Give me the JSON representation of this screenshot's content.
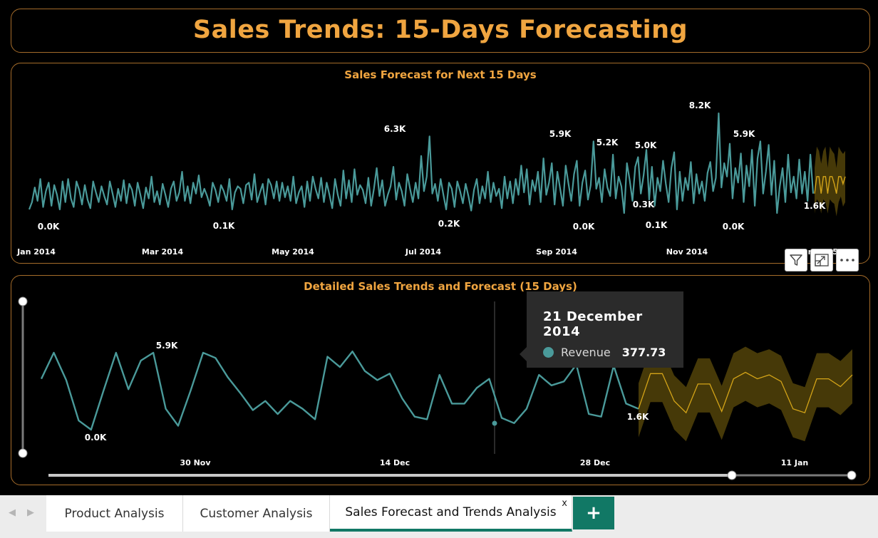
{
  "header": {
    "title": "Sales Trends: 15-Days Forecasting"
  },
  "colors": {
    "accent": "#f0a540",
    "actual": "#4a9a9a",
    "forecast": "#d4a418",
    "band": "#4a3c08"
  },
  "visual_header": {
    "filter_icon": "filter-icon",
    "focus_icon": "focus-mode-icon",
    "more_icon": "more-options-icon"
  },
  "tooltip": {
    "date": "21 December 2014",
    "label": "Revenue",
    "value": "377.73"
  },
  "tabs": [
    {
      "label": "Product Analysis"
    },
    {
      "label": "Customer Analysis"
    },
    {
      "label": "Sales Forecast and Trends Analysis",
      "active": true,
      "close": "x"
    }
  ],
  "add_tab": "+",
  "chart_data": [
    {
      "type": "line",
      "title": "Sales Forecast for Next 15 Days",
      "x_ticks": [
        "Jan 2014",
        "Mar 2014",
        "May 2014",
        "Jul 2014",
        "Sep 2014",
        "Nov 2014",
        "Jan 2015"
      ],
      "data_labels": [
        "0.0K",
        "0.1K",
        "6.3K",
        "0.2K",
        "5.9K",
        "0.0K",
        "5.2K",
        "5.0K",
        "0.3K",
        "0.1K",
        "8.2K",
        "0.0K",
        "5.9K",
        "1.6K"
      ],
      "ylim": [
        0,
        8200
      ],
      "series": [
        {
          "kind": "actual",
          "values": [
            300,
            900,
            2100,
            1000,
            2800,
            500,
            1800,
            2500,
            600,
            2300,
            1500,
            300,
            2600,
            900,
            2800,
            1200,
            500,
            2600,
            1900,
            700,
            2300,
            1100,
            400,
            2600,
            1700,
            900,
            2200,
            1400,
            700,
            2600,
            1600,
            500,
            2000,
            1000,
            2700,
            800,
            2400,
            1900,
            600,
            2500,
            1500,
            400,
            2100,
            1200,
            3000,
            900,
            1800,
            700,
            2400,
            1500,
            500,
            2000,
            2600,
            1000,
            1700,
            3400,
            1000,
            2200,
            800,
            2500,
            1600,
            3100,
            1300,
            2000,
            1400,
            600,
            2500,
            1900,
            900,
            2300,
            1800,
            1000,
            2800,
            300,
            1700,
            2200,
            2000,
            800,
            2300,
            2500,
            1100,
            3200,
            900,
            1700,
            2400,
            700,
            2800,
            2300,
            1200,
            2600,
            1000,
            2500,
            1300,
            2200,
            1000,
            3000,
            800,
            1700,
            2200,
            500,
            2600,
            1000,
            3000,
            2000,
            1200,
            2900,
            900,
            2500,
            1500,
            400,
            2800,
            1500,
            600,
            3500,
            1200,
            2700,
            900,
            3600,
            1500,
            2300,
            1900,
            800,
            2900,
            600,
            2000,
            3700,
            1400,
            2700,
            600,
            1500,
            2200,
            3800,
            1100,
            2500,
            1800,
            600,
            3200,
            2000,
            900,
            2500,
            1200,
            4700,
            1800,
            3000,
            6300,
            1600,
            2400,
            1000,
            2800,
            1500,
            300,
            2500,
            2000,
            500,
            2600,
            1800,
            800,
            2400,
            1400,
            200,
            1900,
            2800,
            800,
            2200,
            1200,
            3400,
            900,
            2500,
            1400,
            2000,
            400,
            3000,
            1200,
            2600,
            800,
            2800,
            1500,
            3900,
            1700,
            3600,
            700,
            2700,
            1800,
            3400,
            900,
            4500,
            1500,
            2500,
            4100,
            700,
            3400,
            2000,
            600,
            3900,
            2400,
            1000,
            3200,
            4300,
            600,
            2500,
            3500,
            1100,
            2300,
            5900,
            2000,
            2900,
            900,
            3600,
            2100,
            1400,
            4800,
            1200,
            3000,
            2200,
            0,
            4100,
            2700,
            1000,
            3800,
            4600,
            1600,
            3100,
            5200,
            1100,
            3800,
            600,
            2900,
            1800,
            4300,
            2400,
            900,
            3700,
            5000,
            300,
            3400,
            1000,
            2900,
            1900,
            4200,
            800,
            3200,
            1600,
            2600,
            1000,
            3300,
            4200,
            1800,
            2900,
            8200,
            2100,
            4100,
            3000,
            5700,
            1200,
            3700,
            2500,
            4900,
            900,
            3900,
            2200,
            5200,
            600,
            4500,
            5900,
            1600,
            3400,
            5600,
            1500,
            4300,
            0,
            2200,
            3700,
            900,
            4800,
            1700,
            3000,
            1200,
            4400,
            1600,
            3400,
            1000,
            4800,
            1600
          ]
        },
        {
          "kind": "forecast",
          "values": [
            1600,
            3000,
            3000,
            1600,
            3000,
            3000,
            1600,
            3000,
            3000,
            2400,
            1600,
            3000,
            3000,
            2400,
            3000
          ]
        }
      ]
    },
    {
      "type": "line",
      "title": "Detailed Sales Trends and Forecast (15 Days)",
      "x_ticks": [
        "30 Nov",
        "14 Dec",
        "28 Dec",
        "11 Jan"
      ],
      "data_labels": [
        "5.9K",
        "0.0K",
        "1.6K"
      ],
      "ylim": [
        -2000,
        8200
      ],
      "series": [
        {
          "kind": "actual",
          "values": [
            3900,
            5900,
            3800,
            700,
            0,
            3000,
            5900,
            3100,
            5300,
            5900,
            1600,
            300,
            3000,
            5900,
            5500,
            4000,
            2800,
            1500,
            2200,
            1200,
            2200,
            1600,
            800,
            5600,
            4800,
            6000,
            4500,
            3800,
            4300,
            2400,
            1000,
            800,
            4200,
            2000,
            2000,
            3200,
            3900,
            900,
            500,
            1600,
            4200,
            3400,
            3700,
            5000,
            1200,
            1000,
            4900,
            2000,
            1600
          ]
        },
        {
          "kind": "forecast",
          "values": [
            1600,
            4300,
            4300,
            2200,
            1300,
            3500,
            3500,
            1400,
            3900,
            4400,
            3900,
            4200,
            3700,
            1600,
            1300,
            3900,
            3900,
            3300,
            4200
          ]
        }
      ]
    }
  ]
}
